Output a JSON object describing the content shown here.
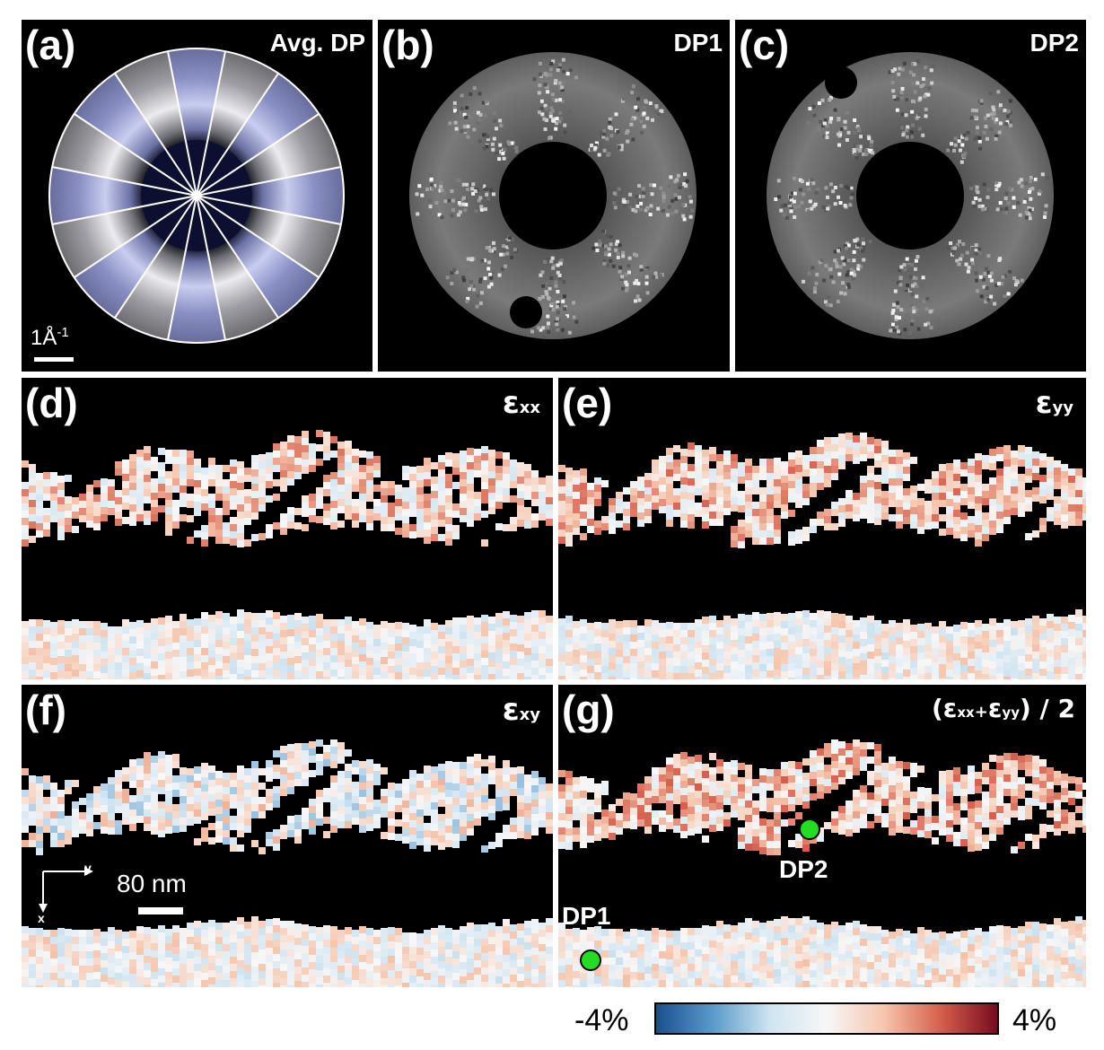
{
  "panels": {
    "a": {
      "label": "(a)",
      "title": "Avg. DP",
      "scale_label": "1Å",
      "scale_sup": "-1"
    },
    "b": {
      "label": "(b)",
      "title": "DP1"
    },
    "c": {
      "label": "(c)",
      "title": "DP2"
    },
    "d": {
      "label": "(d)",
      "symbol": "ε",
      "sub": "xx"
    },
    "e": {
      "label": "(e)",
      "symbol": "ε",
      "sub": "yy"
    },
    "f": {
      "label": "(f)",
      "symbol": "ε",
      "sub": "xy",
      "scalebar": "80 nm",
      "axis_y": "y",
      "axis_x": "x"
    },
    "g": {
      "label": "(g)",
      "formula_open": "(",
      "s1": "ε",
      "sub1": "xx",
      "plus": "+",
      "s2": "ε",
      "sub2": "yy",
      "formula_close": ") / 2",
      "dp2": "DP2",
      "dp1": "DP1"
    }
  },
  "colorbar": {
    "min_label": "-4%",
    "max_label": "4%",
    "colors": [
      "#1a4f8f",
      "#5a9acb",
      "#cfe4f1",
      "#f7f7f7",
      "#f6c6ad",
      "#d6604d",
      "#7a0a1f"
    ]
  },
  "colors": {
    "marker": "#22dd22",
    "panel_bg": "#000000",
    "ring_blue": "#9aa3d4"
  }
}
